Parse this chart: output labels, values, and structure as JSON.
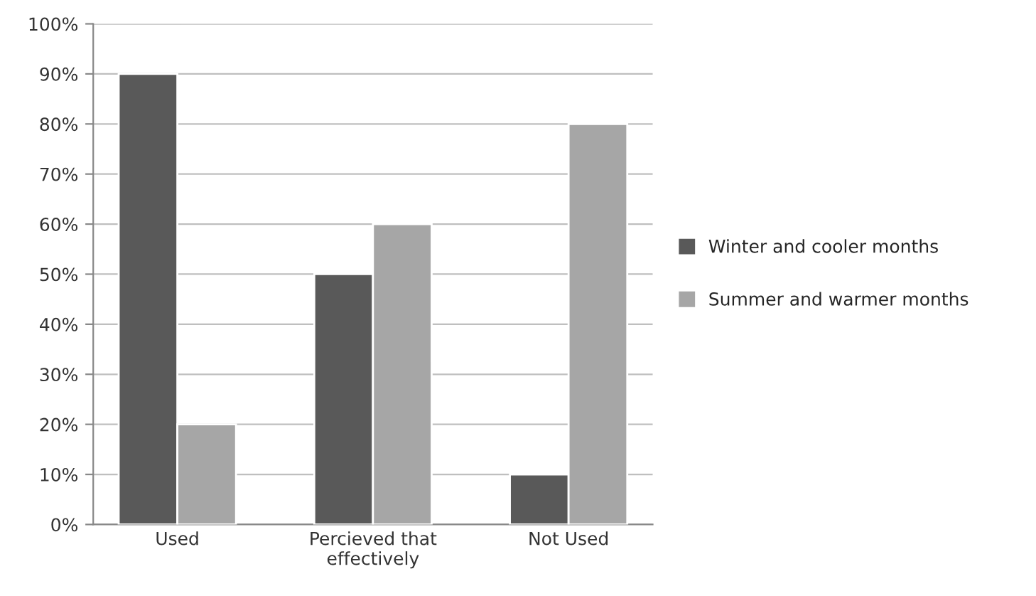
{
  "chart_data": {
    "type": "bar",
    "categories": [
      "Used",
      "Percieved that\neffectively",
      "Not Used"
    ],
    "series": [
      {
        "name": "Winter and cooler months",
        "color": "#595959",
        "values": [
          90,
          50,
          10
        ]
      },
      {
        "name": "Summer and warmer months",
        "color": "#a6a6a6",
        "values": [
          20,
          60,
          80
        ]
      }
    ],
    "ylim": [
      0,
      100
    ],
    "yticks": [
      {
        "value": 0,
        "label": "0%"
      },
      {
        "value": 10,
        "label": "10%"
      },
      {
        "value": 20,
        "label": "20%"
      },
      {
        "value": 30,
        "label": "30%"
      },
      {
        "value": 40,
        "label": "40%"
      },
      {
        "value": 50,
        "label": "50%"
      },
      {
        "value": 60,
        "label": "60%"
      },
      {
        "value": 70,
        "label": "70%"
      },
      {
        "value": 80,
        "label": "80%"
      },
      {
        "value": 90,
        "label": "90%"
      },
      {
        "value": 100,
        "label": "100%"
      }
    ],
    "grid": "y",
    "legend": "right"
  }
}
